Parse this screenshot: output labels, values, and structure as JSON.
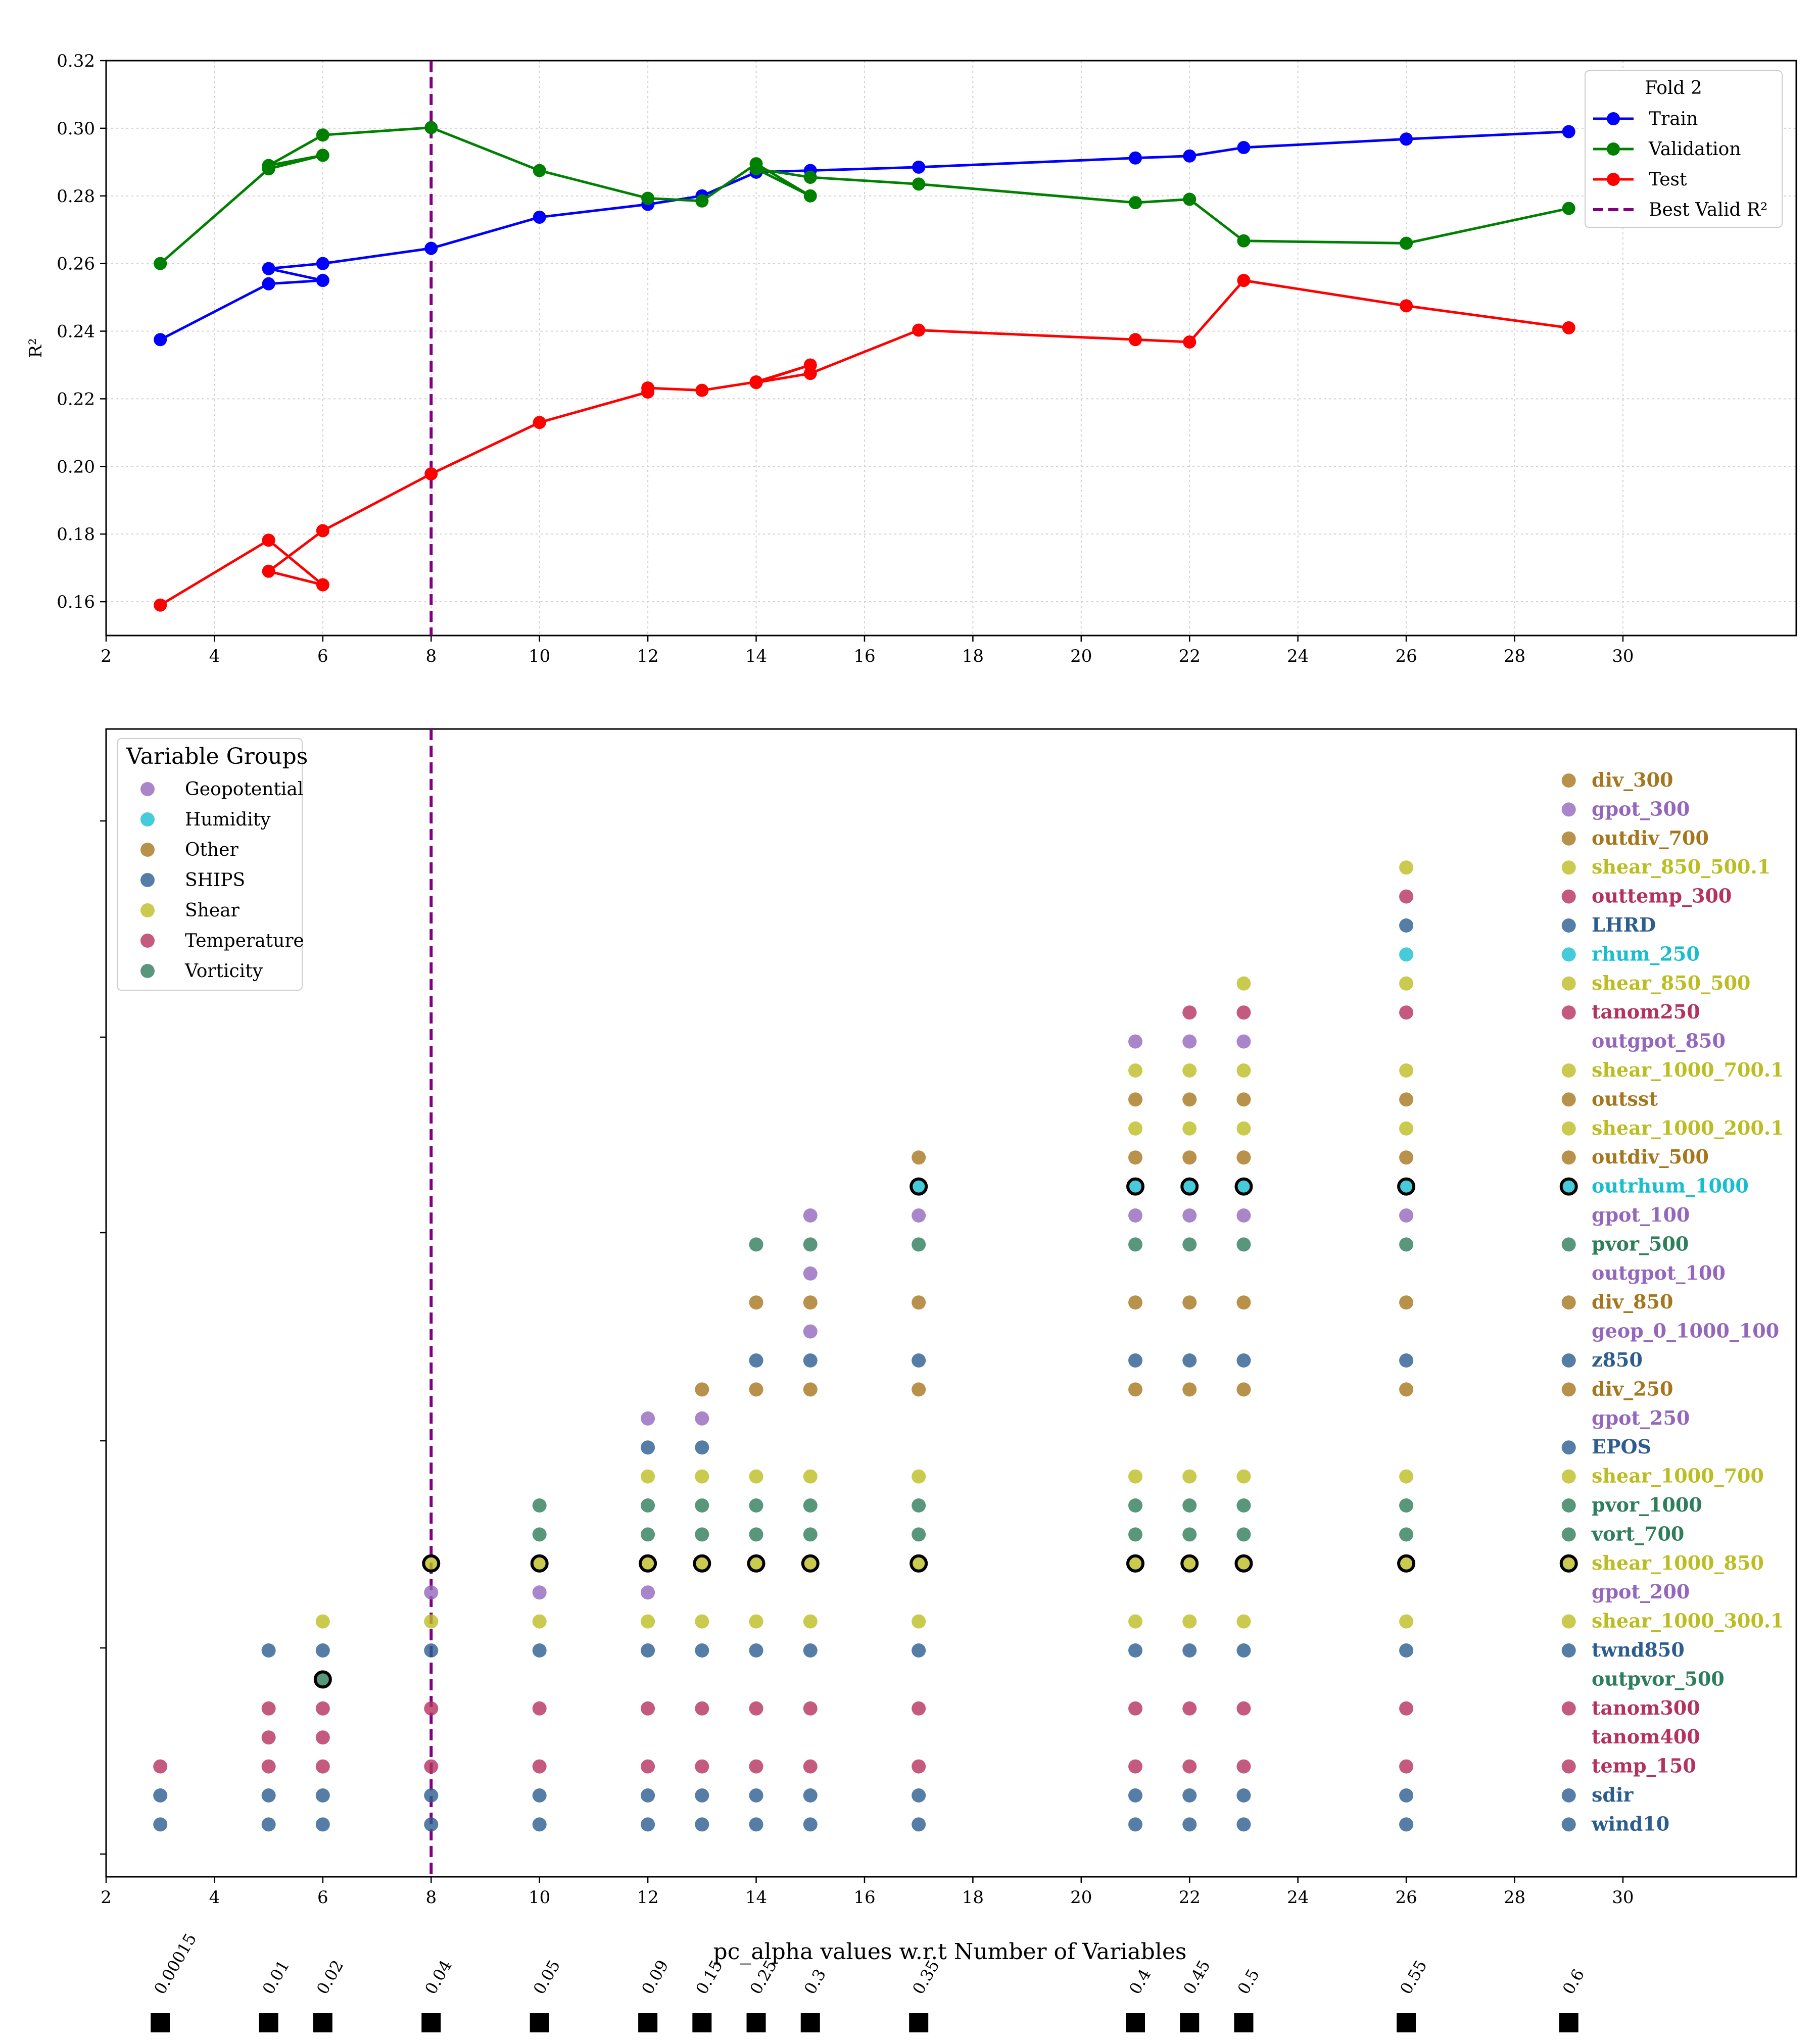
{
  "chart_data": [
    {
      "type": "line",
      "ylabel": "R²",
      "xlim": [
        2,
        33.2
      ],
      "ylim": [
        0.15,
        0.32
      ],
      "xticks": [
        2,
        4,
        6,
        8,
        10,
        12,
        14,
        16,
        18,
        20,
        22,
        24,
        26,
        28,
        30
      ],
      "yticks": [
        0.16,
        0.18,
        0.2,
        0.22,
        0.24,
        0.26,
        0.28,
        0.3,
        0.32
      ],
      "ytick_labels": [
        "0.16",
        "0.18",
        "0.20",
        "0.22",
        "0.24",
        "0.26",
        "0.28",
        "0.30",
        "0.32"
      ],
      "grid": true,
      "best_valid_x": 8,
      "legend": {
        "title": "Fold 2",
        "position": "top-right",
        "entries": [
          "Train",
          "Validation",
          "Test",
          "Best Valid R²"
        ]
      },
      "series": [
        {
          "name": "Train",
          "color": "#0000ff",
          "x": [
            3,
            5,
            6,
            5,
            6,
            8,
            10,
            12,
            13,
            14,
            15,
            17,
            21,
            22,
            23,
            26,
            29
          ],
          "y": [
            0.2375,
            0.254,
            0.255,
            0.2585,
            0.26,
            0.2645,
            0.2737,
            0.2775,
            0.28,
            0.287,
            0.2875,
            0.2885,
            0.2912,
            0.2918,
            0.2943,
            0.2968,
            0.299
          ]
        },
        {
          "name": "Validation",
          "color": "#008000",
          "x": [
            3,
            5,
            6,
            5,
            6,
            8,
            10,
            12,
            13,
            14,
            15,
            14,
            15,
            17,
            21,
            22,
            23,
            26,
            29
          ],
          "y": [
            0.26,
            0.288,
            0.292,
            0.289,
            0.298,
            0.3002,
            0.2875,
            0.2793,
            0.2785,
            0.2895,
            0.28,
            0.288,
            0.2855,
            0.2835,
            0.278,
            0.279,
            0.2667,
            0.266,
            0.2763
          ]
        },
        {
          "name": "Test",
          "color": "#ff0000",
          "x": [
            3,
            5,
            6,
            5,
            6,
            8,
            10,
            12,
            12,
            13,
            14,
            15,
            14,
            15,
            17,
            21,
            22,
            23,
            26,
            29
          ],
          "y": [
            0.159,
            0.1782,
            0.165,
            0.169,
            0.181,
            0.1978,
            0.213,
            0.222,
            0.2232,
            0.2225,
            0.225,
            0.23,
            0.2248,
            0.2275,
            0.2403,
            0.2375,
            0.2368,
            0.255,
            0.2475,
            0.241
          ]
        }
      ]
    },
    {
      "type": "scatter",
      "xlabel": "pc_alpha values w.r.t Number of Variables",
      "xlim": [
        2,
        33.2
      ],
      "xticks": [
        2,
        4,
        6,
        8,
        10,
        12,
        14,
        16,
        18,
        20,
        22,
        24,
        26,
        28,
        30
      ],
      "best_valid_x": 8,
      "legend": {
        "title": "Variable Groups",
        "position": "top-left",
        "entries": [
          {
            "name": "Geopotential",
            "color": "#9467bd"
          },
          {
            "name": "Humidity",
            "color": "#17becf"
          },
          {
            "name": "Other",
            "color": "#a6761d"
          },
          {
            "name": "SHIPS",
            "color": "#2c5d8f"
          },
          {
            "name": "Shear",
            "color": "#bcbd22"
          },
          {
            "name": "Temperature",
            "color": "#b5325f"
          },
          {
            "name": "Vorticity",
            "color": "#2e7d5b"
          }
        ]
      },
      "variables": [
        {
          "name": "div_300",
          "group": "Other"
        },
        {
          "name": "gpot_300",
          "group": "Geopotential"
        },
        {
          "name": "outdiv_700",
          "group": "Other"
        },
        {
          "name": "shear_850_500.1",
          "group": "Shear"
        },
        {
          "name": "outtemp_300",
          "group": "Temperature"
        },
        {
          "name": "LHRD",
          "group": "SHIPS"
        },
        {
          "name": "rhum_250",
          "group": "Humidity"
        },
        {
          "name": "shear_850_500",
          "group": "Shear"
        },
        {
          "name": "tanom250",
          "group": "Temperature"
        },
        {
          "name": "outgpot_850",
          "group": "Geopotential"
        },
        {
          "name": "shear_1000_700.1",
          "group": "Shear"
        },
        {
          "name": "outsst",
          "group": "Other"
        },
        {
          "name": "shear_1000_200.1",
          "group": "Shear"
        },
        {
          "name": "outdiv_500",
          "group": "Other"
        },
        {
          "name": "outrhum_1000",
          "group": "Humidity"
        },
        {
          "name": "gpot_100",
          "group": "Geopotential"
        },
        {
          "name": "pvor_500",
          "group": "Vorticity"
        },
        {
          "name": "outgpot_100",
          "group": "Geopotential"
        },
        {
          "name": "div_850",
          "group": "Other"
        },
        {
          "name": "geop_0_1000_100",
          "group": "Geopotential"
        },
        {
          "name": "z850",
          "group": "SHIPS"
        },
        {
          "name": "div_250",
          "group": "Other"
        },
        {
          "name": "gpot_250",
          "group": "Geopotential"
        },
        {
          "name": "EPOS",
          "group": "SHIPS"
        },
        {
          "name": "shear_1000_700",
          "group": "Shear"
        },
        {
          "name": "pvor_1000",
          "group": "Vorticity"
        },
        {
          "name": "vort_700",
          "group": "Vorticity"
        },
        {
          "name": "shear_1000_850",
          "group": "Shear"
        },
        {
          "name": "gpot_200",
          "group": "Geopotential"
        },
        {
          "name": "shear_1000_300.1",
          "group": "Shear"
        },
        {
          "name": "twnd850",
          "group": "SHIPS"
        },
        {
          "name": "outpvor_500",
          "group": "Vorticity"
        },
        {
          "name": "tanom300",
          "group": "Temperature"
        },
        {
          "name": "tanom400",
          "group": "Temperature"
        },
        {
          "name": "temp_150",
          "group": "Temperature"
        },
        {
          "name": "sdir",
          "group": "SHIPS"
        },
        {
          "name": "wind10",
          "group": "SHIPS"
        }
      ],
      "selections": [
        {
          "x": 3,
          "vars": [
            "wind10",
            "sdir",
            "temp_150"
          ]
        },
        {
          "x": 5,
          "vars": [
            "wind10",
            "sdir",
            "temp_150",
            "tanom400",
            "tanom300",
            "twnd850"
          ]
        },
        {
          "x": 6,
          "vars": [
            "wind10",
            "sdir",
            "temp_150",
            "tanom400",
            "tanom300",
            "outpvor_500",
            "twnd850",
            "shear_1000_300.1"
          ],
          "highlight": [
            "outpvor_500"
          ]
        },
        {
          "x": 8,
          "vars": [
            "wind10",
            "sdir",
            "temp_150",
            "tanom300",
            "twnd850",
            "shear_1000_300.1",
            "gpot_200",
            "shear_1000_850"
          ],
          "highlight": [
            "shear_1000_850"
          ]
        },
        {
          "x": 10,
          "vars": [
            "wind10",
            "sdir",
            "temp_150",
            "tanom300",
            "twnd850",
            "shear_1000_300.1",
            "gpot_200",
            "shear_1000_850",
            "vort_700",
            "pvor_1000"
          ],
          "highlight": [
            "shear_1000_850"
          ]
        },
        {
          "x": 12,
          "vars": [
            "wind10",
            "sdir",
            "temp_150",
            "tanom300",
            "twnd850",
            "shear_1000_300.1",
            "gpot_200",
            "shear_1000_850",
            "vort_700",
            "pvor_1000",
            "shear_1000_700",
            "EPOS",
            "gpot_250"
          ],
          "highlight": [
            "shear_1000_850"
          ]
        },
        {
          "x": 13,
          "vars": [
            "wind10",
            "sdir",
            "temp_150",
            "tanom300",
            "twnd850",
            "shear_1000_300.1",
            "shear_1000_850",
            "vort_700",
            "pvor_1000",
            "shear_1000_700",
            "EPOS",
            "gpot_250",
            "div_250"
          ],
          "highlight": [
            "shear_1000_850"
          ]
        },
        {
          "x": 14,
          "vars": [
            "wind10",
            "sdir",
            "temp_150",
            "tanom300",
            "twnd850",
            "shear_1000_300.1",
            "shear_1000_850",
            "vort_700",
            "pvor_1000",
            "shear_1000_700",
            "div_250",
            "z850",
            "div_850",
            "pvor_500"
          ],
          "highlight": [
            "shear_1000_850"
          ]
        },
        {
          "x": 15,
          "vars": [
            "wind10",
            "sdir",
            "temp_150",
            "tanom300",
            "twnd850",
            "shear_1000_300.1",
            "shear_1000_850",
            "vort_700",
            "pvor_1000",
            "shear_1000_700",
            "div_250",
            "z850",
            "geop_0_1000_100",
            "div_850",
            "outgpot_100",
            "pvor_500",
            "gpot_100"
          ],
          "highlight": [
            "shear_1000_850"
          ]
        },
        {
          "x": 17,
          "vars": [
            "wind10",
            "sdir",
            "temp_150",
            "tanom300",
            "twnd850",
            "shear_1000_300.1",
            "shear_1000_850",
            "vort_700",
            "pvor_1000",
            "shear_1000_700",
            "div_250",
            "z850",
            "div_850",
            "pvor_500",
            "gpot_100",
            "outrhum_1000",
            "outdiv_500"
          ],
          "highlight": [
            "shear_1000_850",
            "outrhum_1000"
          ]
        },
        {
          "x": 21,
          "vars": [
            "wind10",
            "sdir",
            "temp_150",
            "tanom300",
            "twnd850",
            "shear_1000_300.1",
            "shear_1000_850",
            "vort_700",
            "pvor_1000",
            "shear_1000_700",
            "div_250",
            "z850",
            "div_850",
            "pvor_500",
            "gpot_100",
            "outrhum_1000",
            "outdiv_500",
            "shear_1000_200.1",
            "outsst",
            "shear_1000_700.1",
            "outgpot_850"
          ],
          "highlight": [
            "shear_1000_850",
            "outrhum_1000"
          ]
        },
        {
          "x": 22,
          "vars": [
            "wind10",
            "sdir",
            "temp_150",
            "tanom300",
            "twnd850",
            "shear_1000_300.1",
            "shear_1000_850",
            "vort_700",
            "pvor_1000",
            "shear_1000_700",
            "div_250",
            "z850",
            "div_850",
            "pvor_500",
            "gpot_100",
            "outrhum_1000",
            "outdiv_500",
            "shear_1000_200.1",
            "outsst",
            "shear_1000_700.1",
            "outgpot_850",
            "tanom250"
          ],
          "highlight": [
            "shear_1000_850",
            "outrhum_1000"
          ]
        },
        {
          "x": 23,
          "vars": [
            "wind10",
            "sdir",
            "temp_150",
            "tanom300",
            "twnd850",
            "shear_1000_300.1",
            "shear_1000_850",
            "vort_700",
            "pvor_1000",
            "shear_1000_700",
            "div_250",
            "z850",
            "div_850",
            "pvor_500",
            "gpot_100",
            "outrhum_1000",
            "outdiv_500",
            "shear_1000_200.1",
            "outsst",
            "shear_1000_700.1",
            "outgpot_850",
            "tanom250",
            "shear_850_500"
          ],
          "highlight": [
            "shear_1000_850",
            "outrhum_1000"
          ]
        },
        {
          "x": 26,
          "vars": [
            "wind10",
            "sdir",
            "temp_150",
            "tanom300",
            "twnd850",
            "shear_1000_300.1",
            "shear_1000_850",
            "vort_700",
            "pvor_1000",
            "shear_1000_700",
            "div_250",
            "z850",
            "div_850",
            "pvor_500",
            "gpot_100",
            "outrhum_1000",
            "outdiv_500",
            "shear_1000_200.1",
            "outsst",
            "shear_1000_700.1",
            "tanom250",
            "shear_850_500",
            "rhum_250",
            "LHRD",
            "outtemp_300",
            "shear_850_500.1"
          ],
          "highlight": [
            "shear_1000_850",
            "outrhum_1000"
          ]
        },
        {
          "x": 29,
          "vars": [
            "wind10",
            "sdir",
            "temp_150",
            "tanom300",
            "twnd850",
            "shear_1000_300.1",
            "shear_1000_850",
            "vort_700",
            "pvor_1000",
            "shear_1000_700",
            "EPOS",
            "div_250",
            "z850",
            "div_850",
            "pvor_500",
            "outrhum_1000",
            "outdiv_500",
            "shear_1000_200.1",
            "outsst",
            "shear_1000_700.1",
            "tanom250",
            "shear_850_500",
            "rhum_250",
            "LHRD",
            "outtemp_300",
            "shear_850_500.1",
            "outdiv_700",
            "gpot_300",
            "div_300"
          ],
          "highlight": [
            "shear_1000_850",
            "outrhum_1000"
          ]
        }
      ],
      "pc_alpha": [
        {
          "x": 3,
          "label": "0.00015"
        },
        {
          "x": 5,
          "label": "0.01"
        },
        {
          "x": 6,
          "label": "0.02"
        },
        {
          "x": 8,
          "label": "0.04"
        },
        {
          "x": 10,
          "label": "0.05"
        },
        {
          "x": 12,
          "label": "0.09"
        },
        {
          "x": 13,
          "label": "0.15"
        },
        {
          "x": 14,
          "label": "0.25"
        },
        {
          "x": 15,
          "label": "0.3"
        },
        {
          "x": 17,
          "label": "0.35"
        },
        {
          "x": 21,
          "label": "0.4"
        },
        {
          "x": 22,
          "label": "0.45"
        },
        {
          "x": 23,
          "label": "0.5"
        },
        {
          "x": 26,
          "label": "0.55"
        },
        {
          "x": 29,
          "label": "0.6"
        }
      ]
    }
  ]
}
